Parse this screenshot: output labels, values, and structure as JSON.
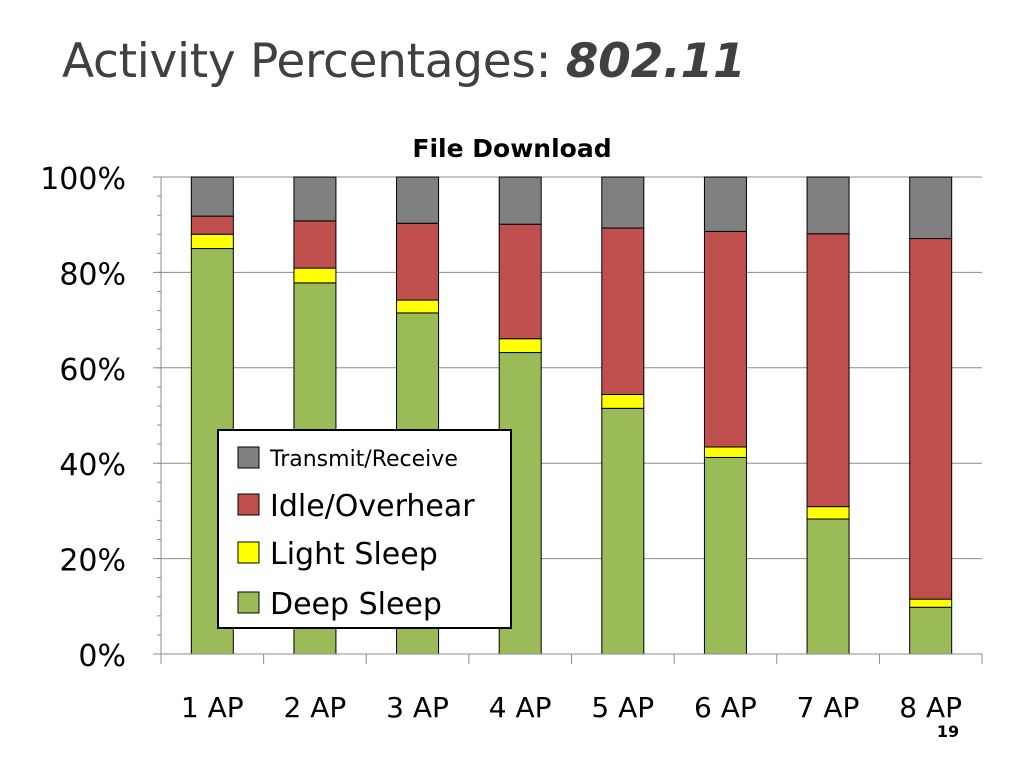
{
  "slide": {
    "title_main": "Activity Percentages: ",
    "title_emph": "802.11",
    "page_number": "19"
  },
  "chart_data": {
    "type": "bar",
    "stacked": true,
    "title": "File Download",
    "categories": [
      "1 AP",
      "2 AP",
      "3 AP",
      "4 AP",
      "5 AP",
      "6 AP",
      "7 AP",
      "8 AP"
    ],
    "ylim": [
      0,
      100
    ],
    "ytick_labels": [
      "0%",
      "20%",
      "40%",
      "60%",
      "80%",
      "100%"
    ],
    "ytick_values": [
      0,
      20,
      40,
      60,
      80,
      100
    ],
    "grid": true,
    "legend_position": "lower-left inside",
    "series": [
      {
        "name": "Deep Sleep",
        "color": "#9BBB59",
        "values": [
          85.0,
          77.8,
          71.5,
          63.2,
          51.5,
          41.2,
          28.3,
          9.8
        ]
      },
      {
        "name": "Light Sleep",
        "color": "#FFFF00",
        "values": [
          3.0,
          3.1,
          2.7,
          2.9,
          2.9,
          2.2,
          2.6,
          1.7
        ]
      },
      {
        "name": "Idle/Overhear",
        "color": "#C0504D",
        "values": [
          3.8,
          9.9,
          16.1,
          24.0,
          34.9,
          45.2,
          57.2,
          75.6
        ]
      },
      {
        "name": "Transmit/Receive",
        "color": "#808080",
        "values": [
          8.2,
          9.2,
          9.7,
          9.9,
          10.7,
          11.4,
          11.9,
          12.9
        ]
      }
    ]
  }
}
